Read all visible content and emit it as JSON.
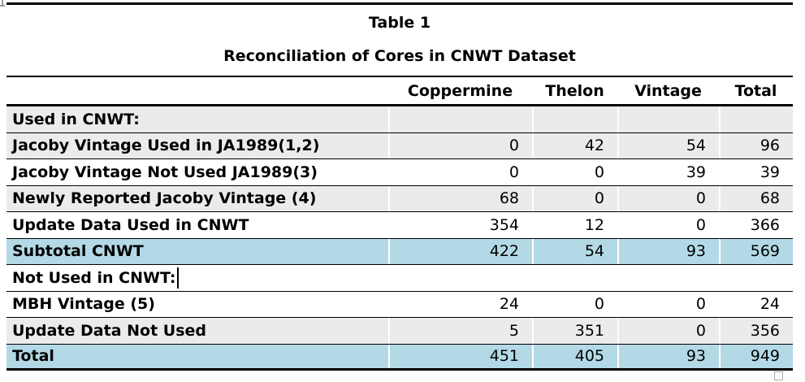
{
  "page": {
    "title": "Table 1",
    "subtitle": "Reconciliation of Cores in CNWT Dataset"
  },
  "table": {
    "columns": [
      "",
      "Coppermine",
      "Thelon",
      "Vintage",
      "Total"
    ],
    "rows": [
      {
        "label": "Used in CNWT:",
        "values": [
          "",
          "",
          "",
          ""
        ],
        "bg": "gray",
        "has_cursor": false
      },
      {
        "label": "Jacoby Vintage Used in JA1989(1,2)",
        "values": [
          "0",
          "42",
          "54",
          "96"
        ],
        "bg": "gray",
        "has_cursor": false
      },
      {
        "label": "Jacoby Vintage Not Used JA1989(3)",
        "values": [
          "0",
          "0",
          "39",
          "39"
        ],
        "bg": "white",
        "has_cursor": false
      },
      {
        "label": "Newly Reported Jacoby Vintage (4)",
        "values": [
          "68",
          "0",
          "0",
          "68"
        ],
        "bg": "gray",
        "has_cursor": false
      },
      {
        "label": "Update Data Used in CNWT",
        "values": [
          "354",
          "12",
          "0",
          "366"
        ],
        "bg": "white",
        "has_cursor": false
      },
      {
        "label": "Subtotal CNWT",
        "values": [
          "422",
          "54",
          "93",
          "569"
        ],
        "bg": "blue",
        "has_cursor": false
      },
      {
        "label": "Not Used in CNWT:",
        "values": [
          "",
          "",
          "",
          ""
        ],
        "bg": "white",
        "has_cursor": true
      },
      {
        "label": "MBH Vintage (5)",
        "values": [
          "24",
          "0",
          "0",
          "24"
        ],
        "bg": "white",
        "has_cursor": false
      },
      {
        "label": "Update Data Not Used",
        "values": [
          "5",
          "351",
          "0",
          "356"
        ],
        "bg": "gray",
        "has_cursor": false
      },
      {
        "label": "Total",
        "values": [
          "451",
          "405",
          "93",
          "949"
        ],
        "bg": "blue",
        "has_cursor": false
      }
    ]
  },
  "colors": {
    "row_gray": "#ebebeb",
    "row_white": "#ffffff",
    "row_blue": "#b3d9e6",
    "border": "#000000",
    "handle_border": "#a6a6a6"
  }
}
